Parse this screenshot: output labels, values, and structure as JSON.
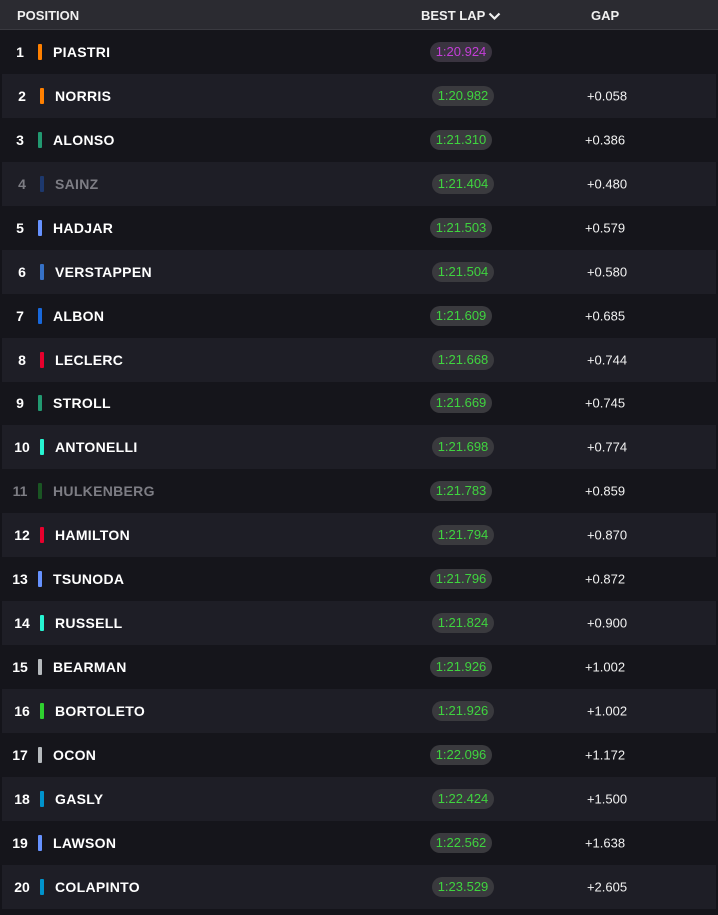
{
  "header": {
    "position": "POSITION",
    "best_lap": "BEST LAP",
    "gap": "GAP",
    "sort_icon": "chevron-down-icon"
  },
  "colors": {
    "fastest_lap": "#c43ed8",
    "personal_best": "#3fd43f"
  },
  "rows": [
    {
      "pos": "1",
      "name": "PIASTRI",
      "team_color": "#ff8000",
      "best_lap": "1:20.924",
      "gap": "",
      "fastest": true,
      "dim": false
    },
    {
      "pos": "2",
      "name": "NORRIS",
      "team_color": "#ff8000",
      "best_lap": "1:20.982",
      "gap": "+0.058",
      "fastest": false,
      "dim": false
    },
    {
      "pos": "3",
      "name": "ALONSO",
      "team_color": "#229971",
      "best_lap": "1:21.310",
      "gap": "+0.386",
      "fastest": false,
      "dim": false
    },
    {
      "pos": "4",
      "name": "SAINZ",
      "team_color": "#1e4fa8",
      "best_lap": "1:21.404",
      "gap": "+0.480",
      "fastest": false,
      "dim": true
    },
    {
      "pos": "5",
      "name": "HADJAR",
      "team_color": "#6692ff",
      "best_lap": "1:21.503",
      "gap": "+0.579",
      "fastest": false,
      "dim": false
    },
    {
      "pos": "6",
      "name": "VERSTAPPEN",
      "team_color": "#3671c6",
      "best_lap": "1:21.504",
      "gap": "+0.580",
      "fastest": false,
      "dim": false
    },
    {
      "pos": "7",
      "name": "ALBON",
      "team_color": "#1868db",
      "best_lap": "1:21.609",
      "gap": "+0.685",
      "fastest": false,
      "dim": false
    },
    {
      "pos": "8",
      "name": "LECLERC",
      "team_color": "#e8002d",
      "best_lap": "1:21.668",
      "gap": "+0.744",
      "fastest": false,
      "dim": false
    },
    {
      "pos": "9",
      "name": "STROLL",
      "team_color": "#229971",
      "best_lap": "1:21.669",
      "gap": "+0.745",
      "fastest": false,
      "dim": false
    },
    {
      "pos": "10",
      "name": "ANTONELLI",
      "team_color": "#27f4d2",
      "best_lap": "1:21.698",
      "gap": "+0.774",
      "fastest": false,
      "dim": false
    },
    {
      "pos": "11",
      "name": "HULKENBERG",
      "team_color": "#1f8a2a",
      "best_lap": "1:21.783",
      "gap": "+0.859",
      "fastest": false,
      "dim": true
    },
    {
      "pos": "12",
      "name": "HAMILTON",
      "team_color": "#e8002d",
      "best_lap": "1:21.794",
      "gap": "+0.870",
      "fastest": false,
      "dim": false
    },
    {
      "pos": "13",
      "name": "TSUNODA",
      "team_color": "#6692ff",
      "best_lap": "1:21.796",
      "gap": "+0.872",
      "fastest": false,
      "dim": false
    },
    {
      "pos": "14",
      "name": "RUSSELL",
      "team_color": "#27f4d2",
      "best_lap": "1:21.824",
      "gap": "+0.900",
      "fastest": false,
      "dim": false
    },
    {
      "pos": "15",
      "name": "BEARMAN",
      "team_color": "#b6babd",
      "best_lap": "1:21.926",
      "gap": "+1.002",
      "fastest": false,
      "dim": false
    },
    {
      "pos": "16",
      "name": "BORTOLETO",
      "team_color": "#2fd02f",
      "best_lap": "1:21.926",
      "gap": "+1.002",
      "fastest": false,
      "dim": false
    },
    {
      "pos": "17",
      "name": "OCON",
      "team_color": "#b6babd",
      "best_lap": "1:22.096",
      "gap": "+1.172",
      "fastest": false,
      "dim": false
    },
    {
      "pos": "18",
      "name": "GASLY",
      "team_color": "#0093cc",
      "best_lap": "1:22.424",
      "gap": "+1.500",
      "fastest": false,
      "dim": false
    },
    {
      "pos": "19",
      "name": "LAWSON",
      "team_color": "#6692ff",
      "best_lap": "1:22.562",
      "gap": "+1.638",
      "fastest": false,
      "dim": false
    },
    {
      "pos": "20",
      "name": "COLAPINTO",
      "team_color": "#0093cc",
      "best_lap": "1:23.529",
      "gap": "+2.605",
      "fastest": false,
      "dim": false
    }
  ]
}
